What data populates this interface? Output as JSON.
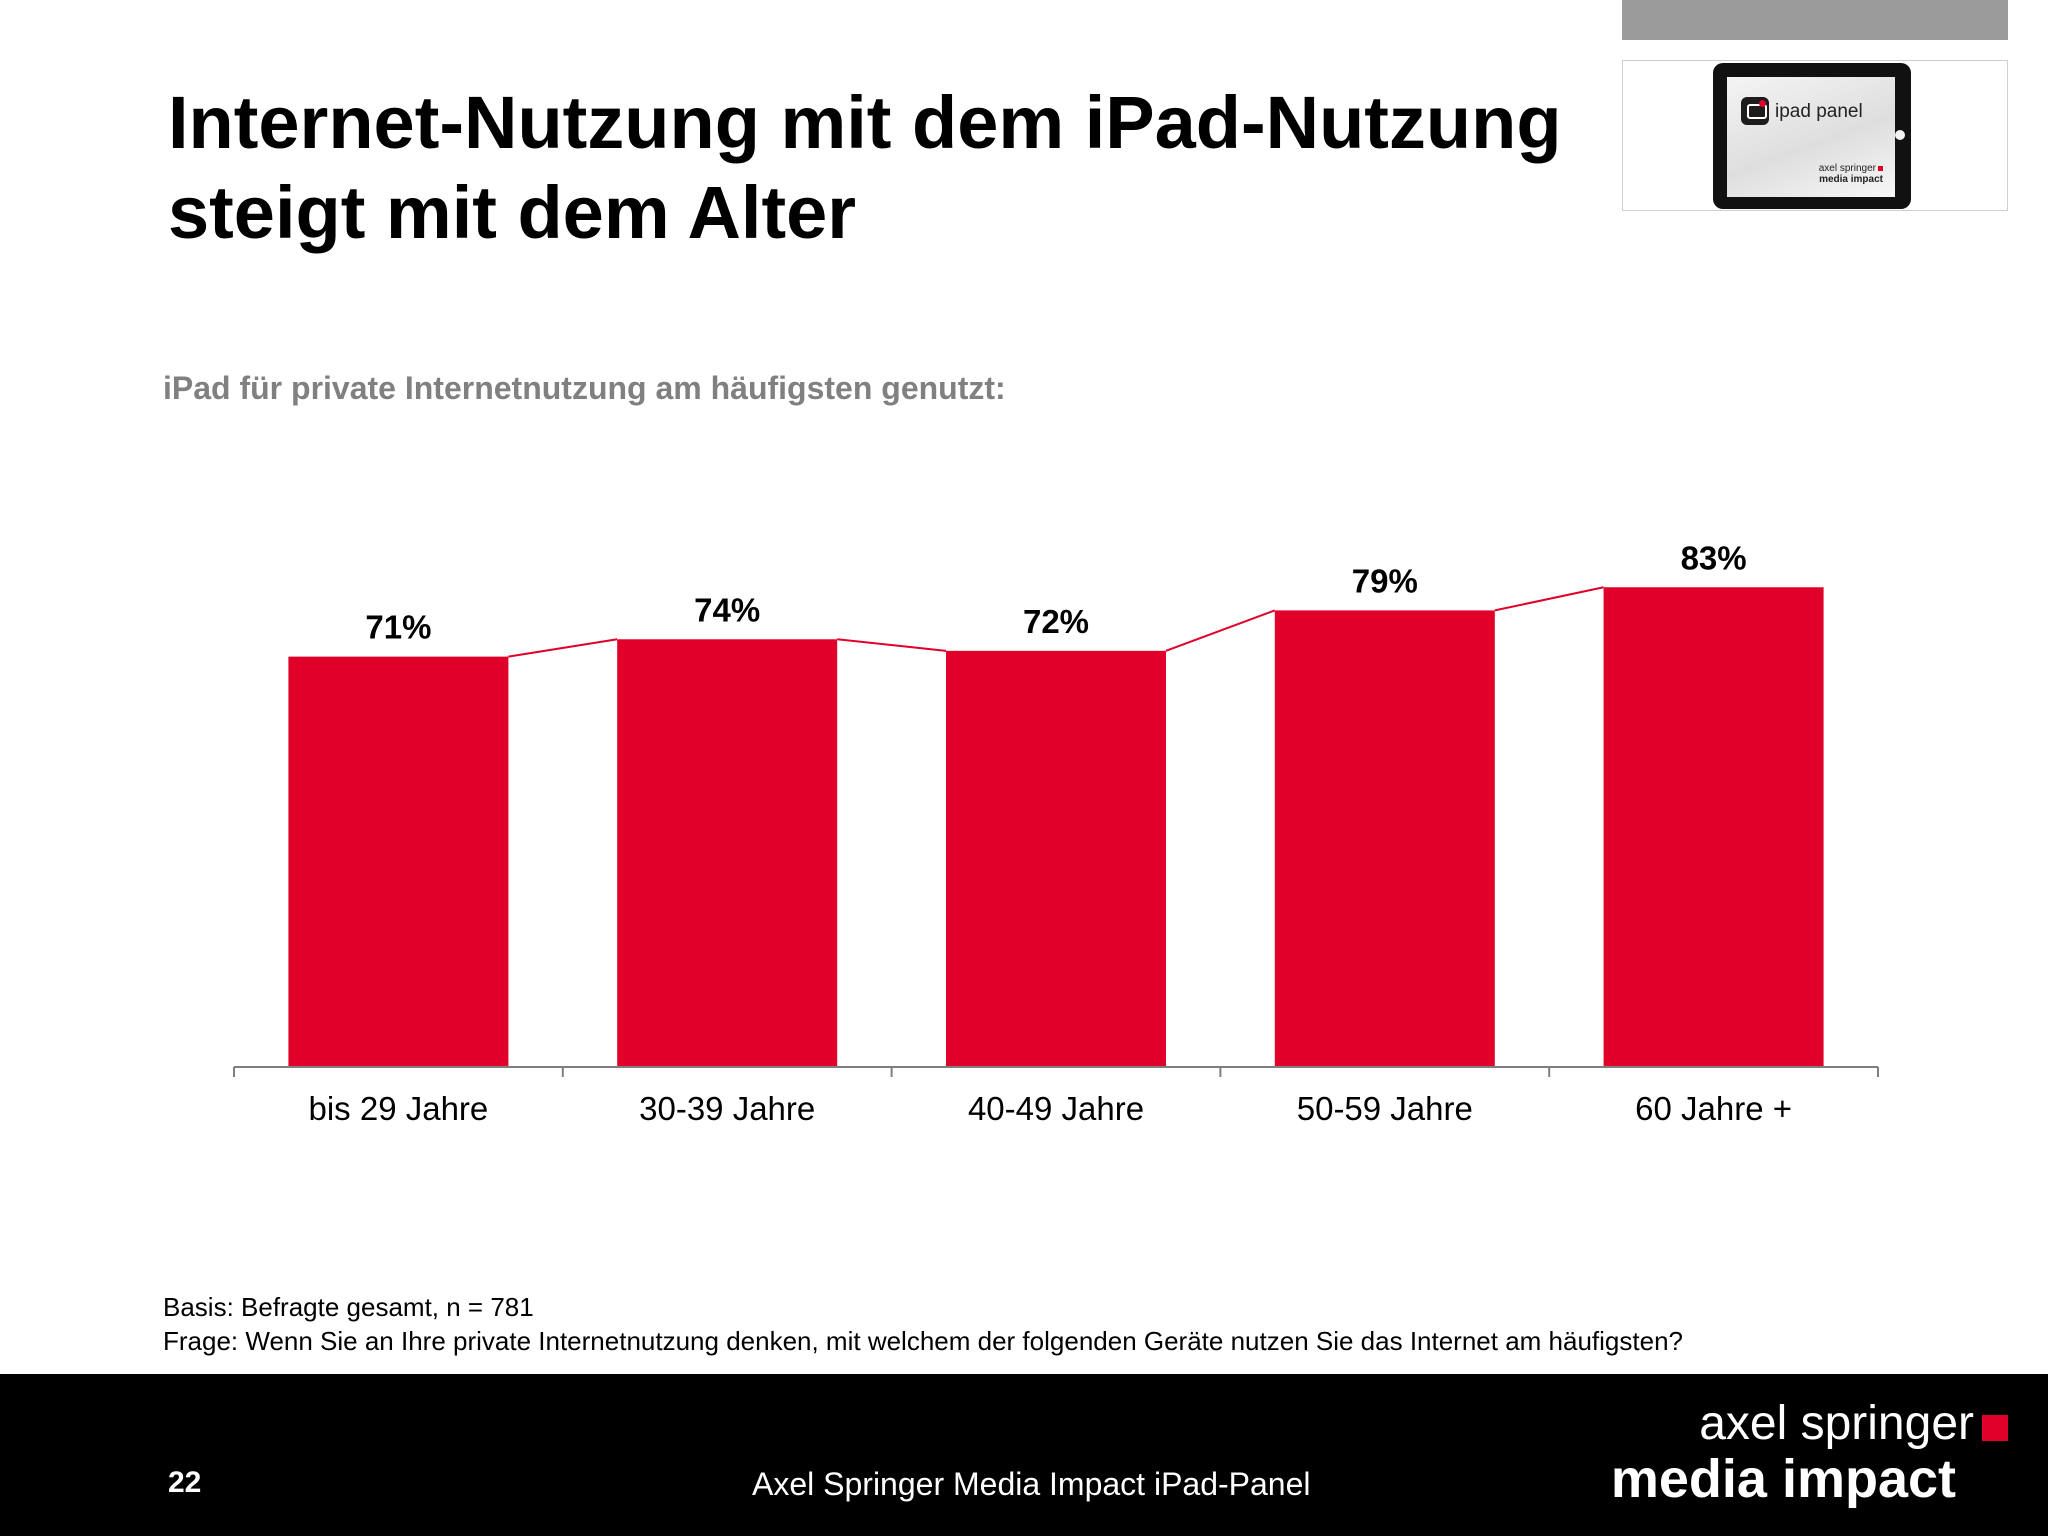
{
  "slide": {
    "title_line1": "Internet-Nutzung mit dem iPad-Nutzung",
    "title_line2": "steigt mit dem Alter",
    "subtitle": "iPad für private Internetnutzung am häufigsten genutzt:",
    "basis": "Basis: Befragte gesamt, n = 781",
    "frage": "Frage: Wenn Sie an Ihre private Internetnutzung denken, mit welchem der folgenden Geräte nutzen Sie das Internet am häufigsten?",
    "page_number": "22",
    "footer_text": "Axel Springer Media Impact iPad-Panel"
  },
  "logo": {
    "app_name": "ipad panel",
    "mini_brand_top": "axel springer",
    "mini_brand_bottom": "media impact"
  },
  "brand": {
    "top": "axel springer",
    "bottom": "media impact",
    "accent_color": "#e0002a"
  },
  "chart_data": {
    "type": "bar",
    "categories": [
      "bis 29 Jahre",
      "30-39 Jahre",
      "40-49 Jahre",
      "50-59 Jahre",
      "60 Jahre +"
    ],
    "values": [
      71,
      74,
      72,
      79,
      83
    ],
    "value_labels": [
      "71%",
      "74%",
      "72%",
      "79%",
      "83%"
    ],
    "ylim": [
      0,
      100
    ],
    "bar_color": "#e0002a",
    "connector_lines": true,
    "grid": false
  }
}
